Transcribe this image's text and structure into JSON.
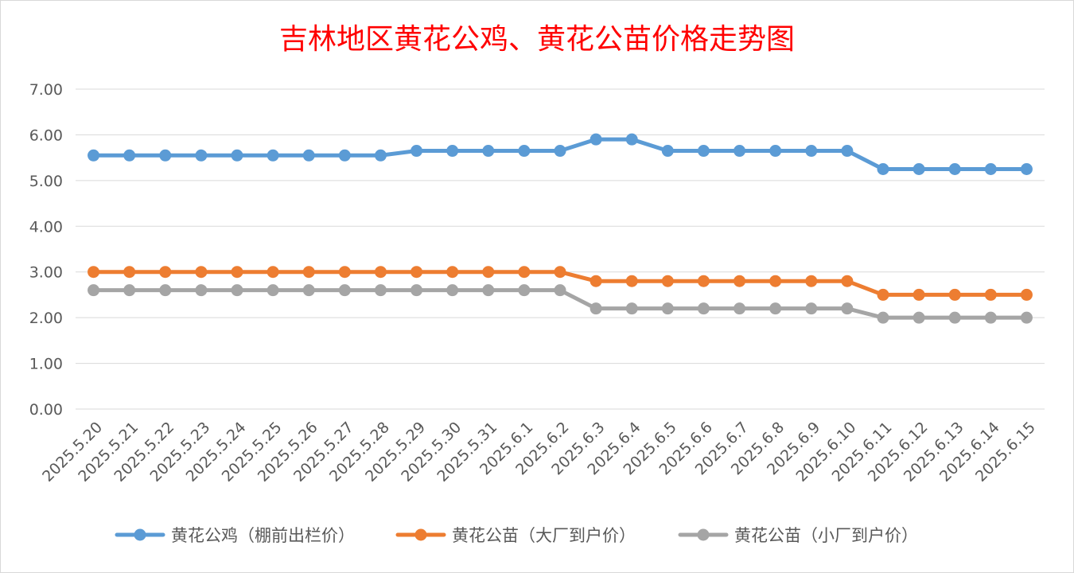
{
  "chart_data": {
    "type": "line",
    "title": "吉林地区黄花公鸡、黄花公苗价格走势图",
    "xlabel": "",
    "ylabel": "",
    "ylim": [
      0,
      7
    ],
    "yticks": [
      "0.00",
      "1.00",
      "2.00",
      "3.00",
      "4.00",
      "5.00",
      "6.00",
      "7.00"
    ],
    "grid": true,
    "legend_position": "bottom",
    "categories": [
      "2025.5.20",
      "2025.5.21",
      "2025.5.22",
      "2025.5.23",
      "2025.5.24",
      "2025.5.25",
      "2025.5.26",
      "2025.5.27",
      "2025.5.28",
      "2025.5.29",
      "2025.5.30",
      "2025.5.31",
      "2025.6.1",
      "2025.6.2",
      "2025.6.3",
      "2025.6.4",
      "2025.6.5",
      "2025.6.6",
      "2025.6.7",
      "2025.6.8",
      "2025.6.9",
      "2025.6.10",
      "2025.6.11",
      "2025.6.12",
      "2025.6.13",
      "2025.6.14",
      "2025.6.15"
    ],
    "series": [
      {
        "name": "黄花公鸡（棚前出栏价）",
        "color": "#5b9bd5",
        "values": [
          5.55,
          5.55,
          5.55,
          5.55,
          5.55,
          5.55,
          5.55,
          5.55,
          5.55,
          5.65,
          5.65,
          5.65,
          5.65,
          5.65,
          5.9,
          5.9,
          5.65,
          5.65,
          5.65,
          5.65,
          5.65,
          5.65,
          5.25,
          5.25,
          5.25,
          5.25,
          5.25
        ]
      },
      {
        "name": "黄花公苗（大厂到户价）",
        "color": "#ed7d31",
        "values": [
          3.0,
          3.0,
          3.0,
          3.0,
          3.0,
          3.0,
          3.0,
          3.0,
          3.0,
          3.0,
          3.0,
          3.0,
          3.0,
          3.0,
          2.8,
          2.8,
          2.8,
          2.8,
          2.8,
          2.8,
          2.8,
          2.8,
          2.5,
          2.5,
          2.5,
          2.5,
          2.5
        ]
      },
      {
        "name": "黄花公苗（小厂到户价）",
        "color": "#a5a5a5",
        "values": [
          2.6,
          2.6,
          2.6,
          2.6,
          2.6,
          2.6,
          2.6,
          2.6,
          2.6,
          2.6,
          2.6,
          2.6,
          2.6,
          2.6,
          2.2,
          2.2,
          2.2,
          2.2,
          2.2,
          2.2,
          2.2,
          2.2,
          2.0,
          2.0,
          2.0,
          2.0,
          2.0
        ]
      }
    ]
  }
}
